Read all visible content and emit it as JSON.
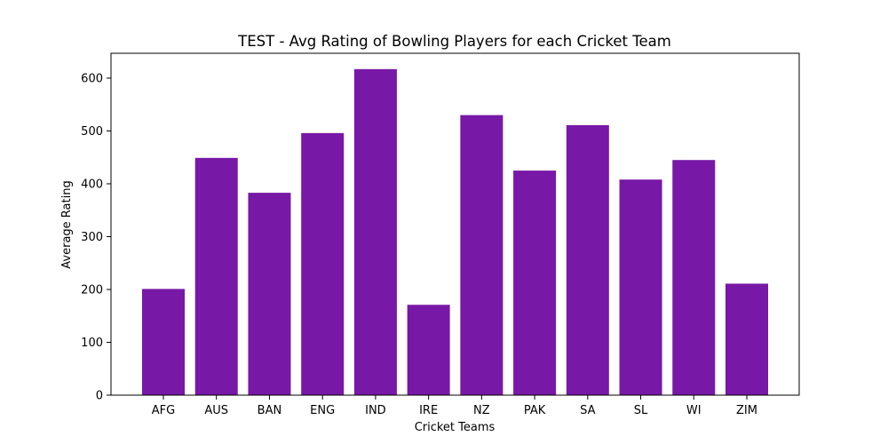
{
  "chart_data": {
    "type": "bar",
    "title": "TEST - Avg Rating of Bowling Players for each Cricket Team",
    "xlabel": "Cricket Teams",
    "ylabel": "Average Rating",
    "categories": [
      "AFG",
      "AUS",
      "BAN",
      "ENG",
      "IND",
      "IRE",
      "NZ",
      "PAK",
      "SA",
      "SL",
      "WI",
      "ZIM"
    ],
    "values": [
      201,
      449,
      383,
      496,
      617,
      171,
      530,
      425,
      511,
      408,
      445,
      211
    ],
    "ylim": [
      0,
      647
    ],
    "yticks": [
      0,
      100,
      200,
      300,
      400,
      500,
      600
    ],
    "bar_color": "#7718a6",
    "grid": false,
    "legend": "none"
  }
}
